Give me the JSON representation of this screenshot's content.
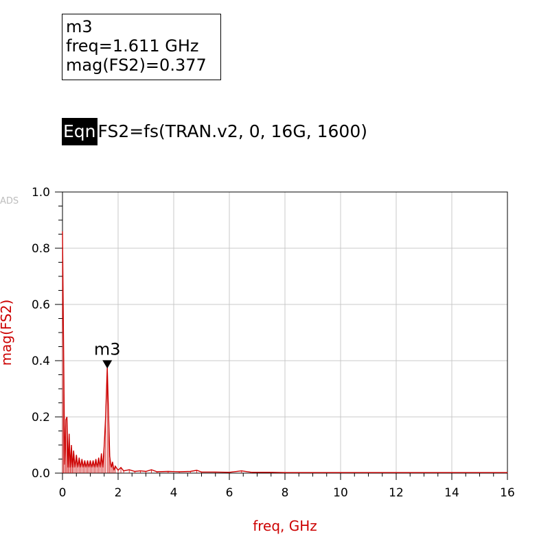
{
  "marker": {
    "name": "m3",
    "line1": "m3",
    "line2": "freq=1.611 GHz",
    "line3": "mag(FS2)=0.377"
  },
  "equation": {
    "tag": "Eqn",
    "text": "FS2=fs(TRAN.v2, 0, 16G, 1600)"
  },
  "watermark": "ADS",
  "colors": {
    "trace": "#cc0000",
    "axis_label": "#cc0000",
    "grid": "#c8c8c8",
    "frame": "#000000"
  },
  "chart_data": {
    "type": "line",
    "xlabel": "freq, GHz",
    "ylabel": "mag(FS2)",
    "xlim": [
      0,
      16
    ],
    "ylim": [
      0,
      1.0
    ],
    "xticks": [
      0,
      2,
      4,
      6,
      8,
      10,
      12,
      14,
      16
    ],
    "xtick_labels": [
      "0",
      "2",
      "4",
      "6",
      "8",
      "10",
      "12",
      "14",
      "16"
    ],
    "yticks": [
      0,
      0.2,
      0.4,
      0.6,
      0.8,
      1.0
    ],
    "ytick_labels": [
      "0.0",
      "0.2",
      "0.4",
      "0.6",
      "0.8",
      "1.0"
    ],
    "grid": true,
    "series": [
      {
        "points": [
          [
            0.0,
            0.86
          ],
          [
            0.04,
            0.45
          ],
          [
            0.08,
            0.03
          ],
          [
            0.12,
            0.19
          ],
          [
            0.16,
            0.2
          ],
          [
            0.2,
            0.02
          ],
          [
            0.24,
            0.14
          ],
          [
            0.28,
            0.02
          ],
          [
            0.32,
            0.1
          ],
          [
            0.36,
            0.02
          ],
          [
            0.4,
            0.08
          ],
          [
            0.45,
            0.02
          ],
          [
            0.5,
            0.065
          ],
          [
            0.55,
            0.02
          ],
          [
            0.6,
            0.055
          ],
          [
            0.65,
            0.02
          ],
          [
            0.7,
            0.05
          ],
          [
            0.75,
            0.02
          ],
          [
            0.8,
            0.045
          ],
          [
            0.85,
            0.02
          ],
          [
            0.9,
            0.045
          ],
          [
            0.95,
            0.02
          ],
          [
            1.0,
            0.045
          ],
          [
            1.05,
            0.02
          ],
          [
            1.1,
            0.045
          ],
          [
            1.15,
            0.02
          ],
          [
            1.2,
            0.05
          ],
          [
            1.25,
            0.02
          ],
          [
            1.3,
            0.055
          ],
          [
            1.35,
            0.02
          ],
          [
            1.4,
            0.07
          ],
          [
            1.45,
            0.02
          ],
          [
            1.5,
            0.1
          ],
          [
            1.55,
            0.2
          ],
          [
            1.611,
            0.377
          ],
          [
            1.66,
            0.2
          ],
          [
            1.7,
            0.06
          ],
          [
            1.75,
            0.02
          ],
          [
            1.8,
            0.04
          ],
          [
            1.85,
            0.01
          ],
          [
            1.9,
            0.025
          ],
          [
            2.0,
            0.01
          ],
          [
            2.1,
            0.02
          ],
          [
            2.2,
            0.008
          ],
          [
            2.4,
            0.012
          ],
          [
            2.6,
            0.006
          ],
          [
            2.8,
            0.008
          ],
          [
            3.0,
            0.006
          ],
          [
            3.2,
            0.012
          ],
          [
            3.4,
            0.005
          ],
          [
            3.8,
            0.006
          ],
          [
            4.2,
            0.005
          ],
          [
            4.6,
            0.006
          ],
          [
            4.83,
            0.01
          ],
          [
            5.0,
            0.004
          ],
          [
            5.5,
            0.004
          ],
          [
            6.0,
            0.003
          ],
          [
            6.44,
            0.008
          ],
          [
            6.8,
            0.003
          ],
          [
            7.5,
            0.003
          ],
          [
            8.0,
            0.002
          ],
          [
            9.0,
            0.002
          ],
          [
            10.0,
            0.002
          ],
          [
            11.0,
            0.002
          ],
          [
            12.0,
            0.002
          ],
          [
            13.0,
            0.002
          ],
          [
            14.0,
            0.002
          ],
          [
            15.0,
            0.002
          ],
          [
            16.0,
            0.002
          ]
        ]
      }
    ],
    "markers": [
      {
        "name": "m3",
        "x": 1.611,
        "y": 0.377
      }
    ]
  }
}
